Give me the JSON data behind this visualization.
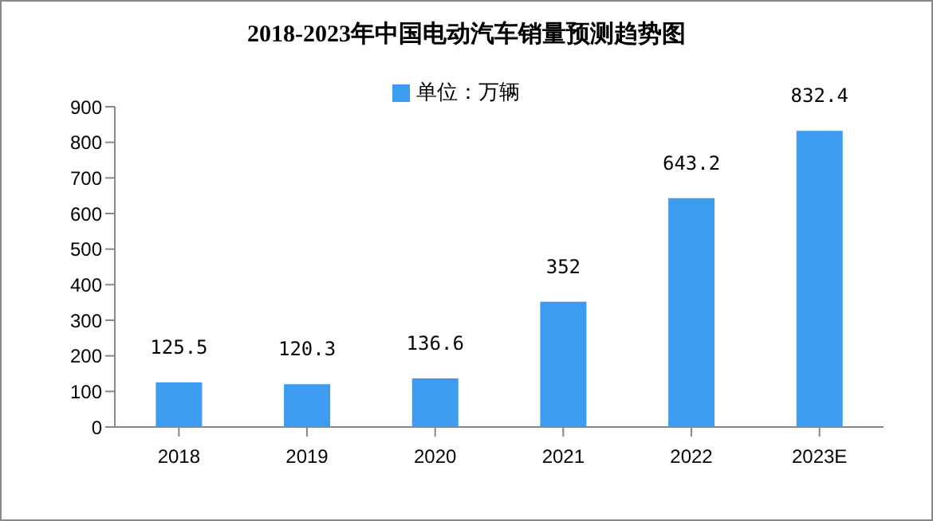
{
  "chart_data": {
    "type": "bar",
    "title": "2018-2023年中国电动汽车销量预测趋势图",
    "categories": [
      "2018",
      "2019",
      "2020",
      "2021",
      "2022",
      "2023E"
    ],
    "series": [
      {
        "name": "单位：万辆",
        "color": "#3d9cf0",
        "values": [
          125.5,
          120.3,
          136.6,
          352,
          643.2,
          832.4
        ]
      }
    ],
    "ylim": [
      0,
      900
    ],
    "yticks": [
      0,
      100,
      200,
      300,
      400,
      500,
      600,
      700,
      800,
      900
    ],
    "grid": false,
    "legend": "top",
    "data_labels": true
  }
}
